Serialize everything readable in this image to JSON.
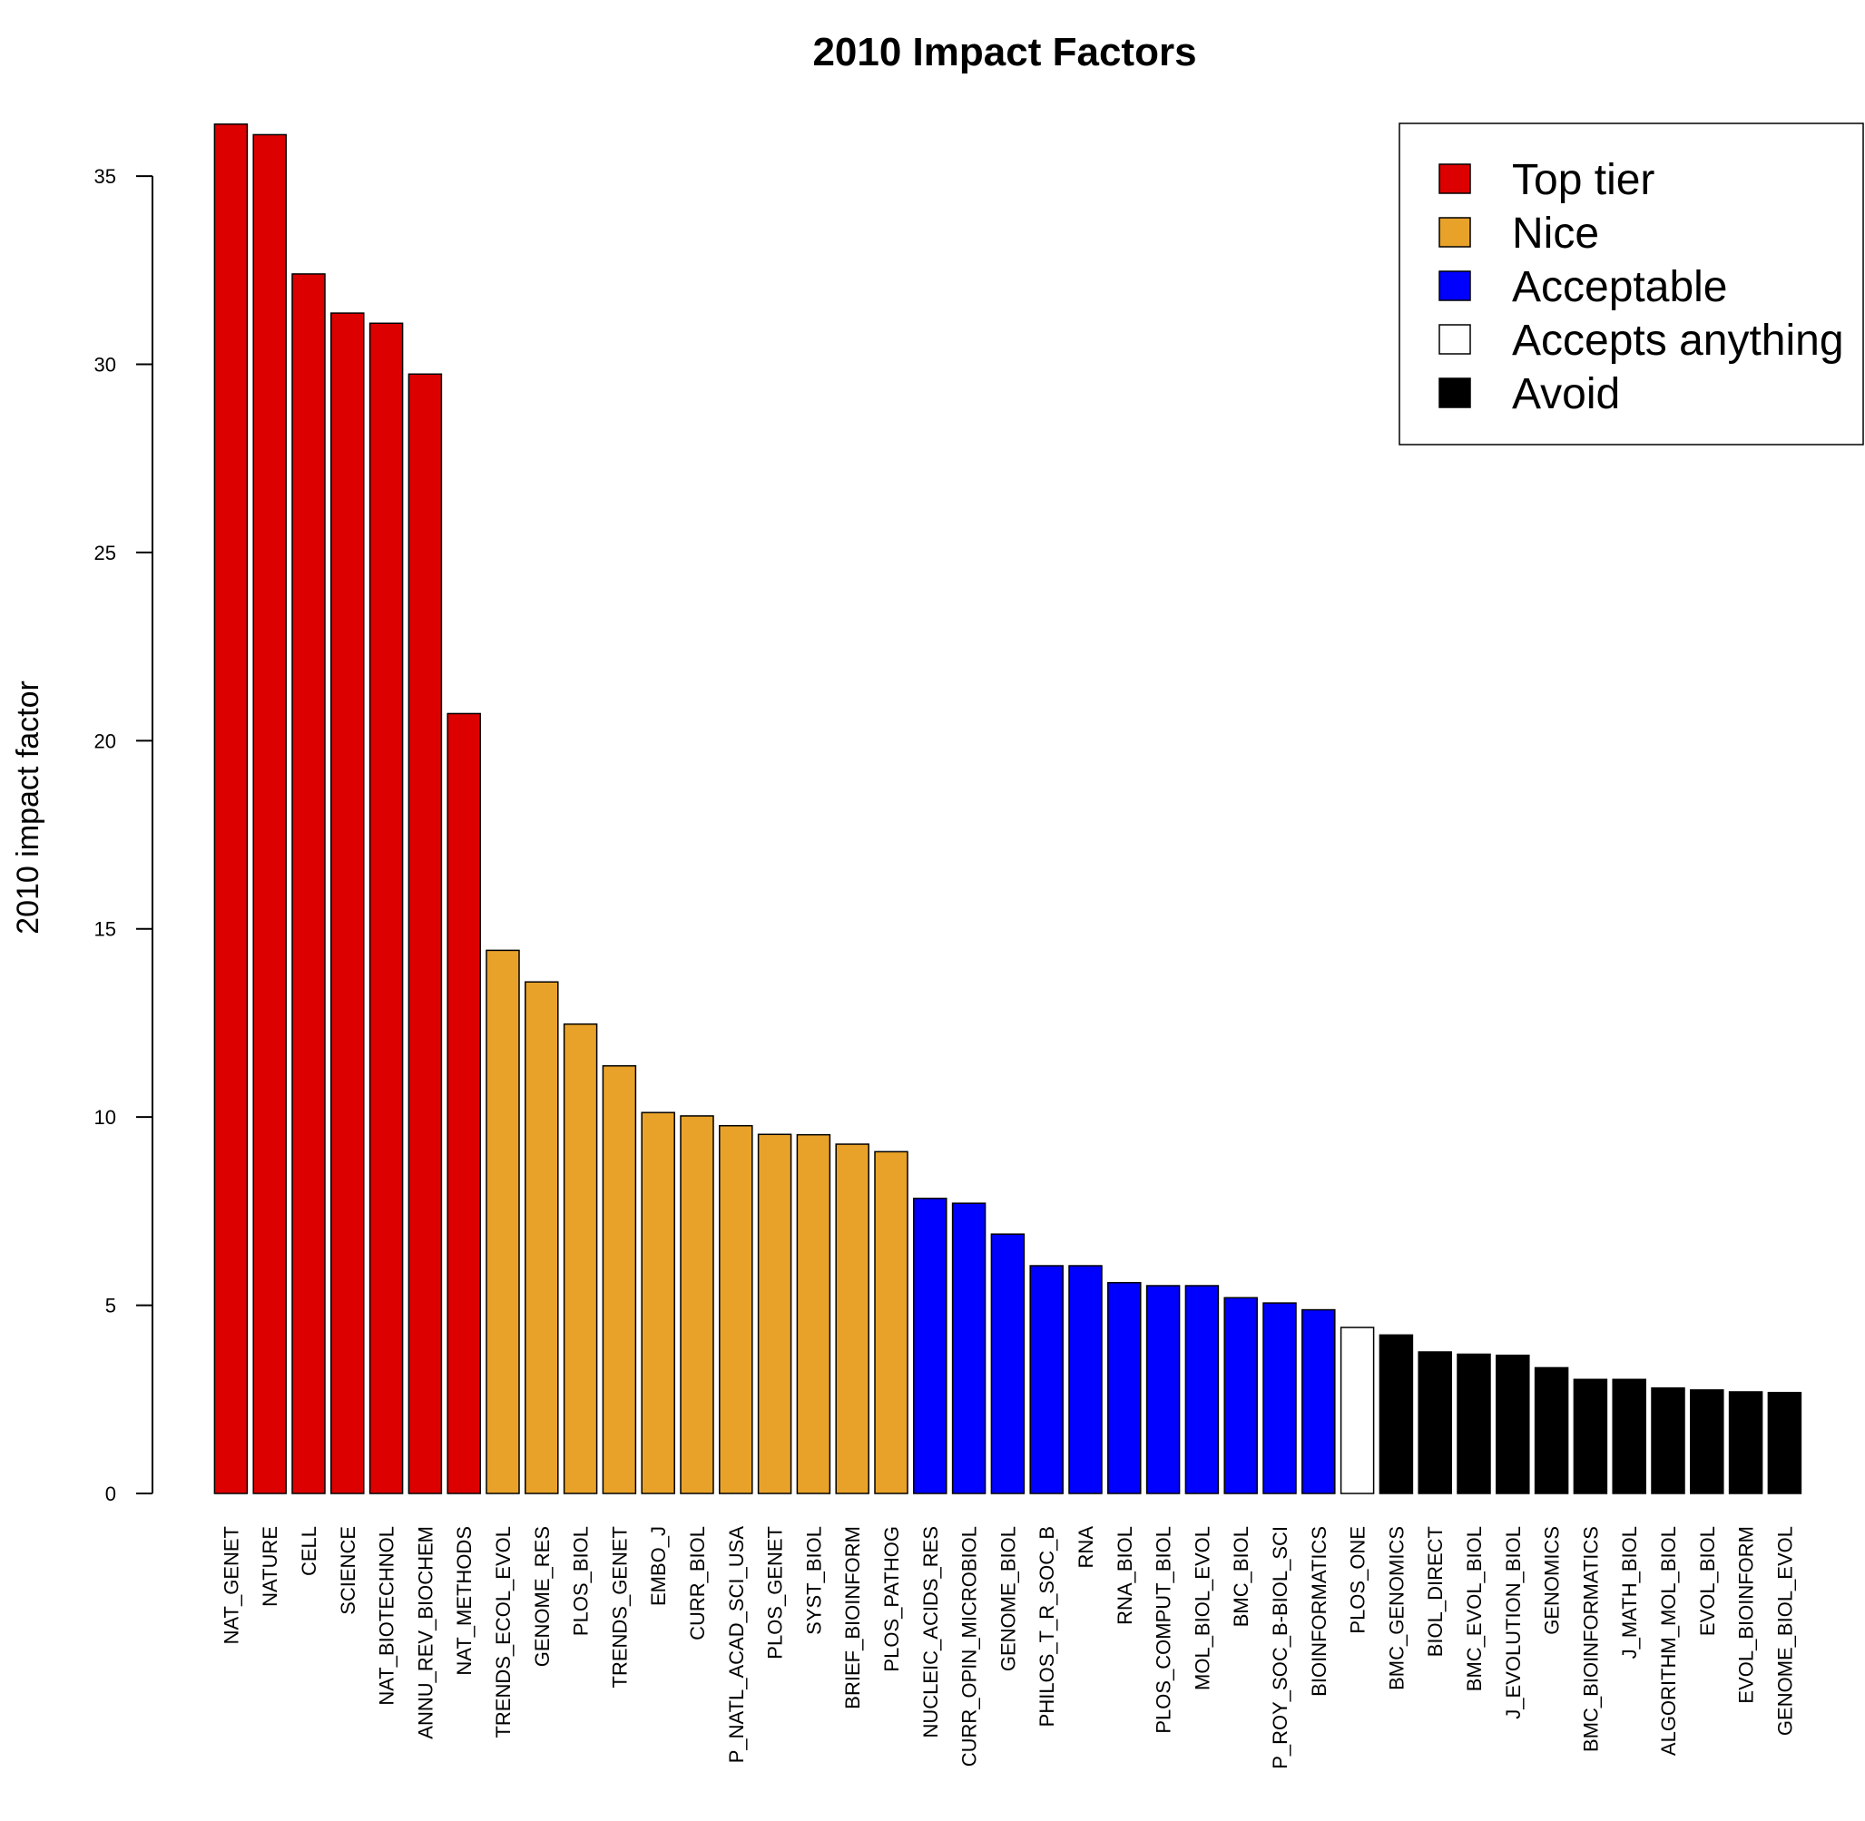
{
  "chart_data": {
    "type": "bar",
    "title": "2010 Impact Factors",
    "xlabel": "",
    "ylabel": "2010 impact factor",
    "ylim": [
      0,
      36.4
    ],
    "yticks": [
      0,
      5,
      10,
      15,
      20,
      25,
      30,
      35
    ],
    "grid": false,
    "legend_position": "top-right",
    "legend": [
      {
        "label": "Top tier",
        "color": "#dd0000"
      },
      {
        "label": "Nice",
        "color": "#e8a22a"
      },
      {
        "label": "Acceptable",
        "color": "#0000ff"
      },
      {
        "label": "Accepts anything",
        "color": "#ffffff"
      },
      {
        "label": "Avoid",
        "color": "#000000"
      }
    ],
    "categories": [
      "NAT_GENET",
      "NATURE",
      "CELL",
      "SCIENCE",
      "NAT_BIOTECHNOL",
      "ANNU_REV_BIOCHEM",
      "NAT_METHODS",
      "TRENDS_ECOL_EVOL",
      "GENOME_RES",
      "PLOS_BIOL",
      "TRENDS_GENET",
      "EMBO_J",
      "CURR_BIOL",
      "P_NATL_ACAD_SCI_USA",
      "PLOS_GENET",
      "SYST_BIOL",
      "BRIEF_BIOINFORM",
      "PLOS_PATHOG",
      "NUCLEIC_ACIDS_RES",
      "CURR_OPIN_MICROBIOL",
      "GENOME_BIOL",
      "PHILOS_T_R_SOC_B",
      "RNA",
      "RNA_BIOL",
      "PLOS_COMPUT_BIOL",
      "MOL_BIOL_EVOL",
      "BMC_BIOL",
      "P_ROY_SOC_B-BIOL_SCI",
      "BIOINFORMATICS",
      "PLOS_ONE",
      "BMC_GENOMICS",
      "BIOL_DIRECT",
      "BMC_EVOL_BIOL",
      "J_EVOLUTION_BIOL",
      "GENOMICS",
      "BMC_BIOINFORMATICS",
      "J_MATH_BIOL",
      "ALGORITHM_MOL_BIOL",
      "EVOL_BIOL",
      "EVOL_BIOINFORM",
      "GENOME_BIOL_EVOL"
    ],
    "values": [
      36.38,
      36.1,
      32.4,
      31.36,
      31.09,
      29.74,
      20.72,
      14.43,
      13.59,
      12.47,
      11.36,
      10.12,
      10.03,
      9.77,
      9.54,
      9.53,
      9.28,
      9.08,
      7.84,
      7.71,
      6.89,
      6.05,
      6.05,
      5.6,
      5.52,
      5.52,
      5.2,
      5.06,
      4.88,
      4.41,
      4.21,
      3.76,
      3.7,
      3.67,
      3.34,
      3.03,
      3.03,
      2.8,
      2.75,
      2.7,
      2.68
    ],
    "tiers": [
      "Top tier",
      "Top tier",
      "Top tier",
      "Top tier",
      "Top tier",
      "Top tier",
      "Top tier",
      "Nice",
      "Nice",
      "Nice",
      "Nice",
      "Nice",
      "Nice",
      "Nice",
      "Nice",
      "Nice",
      "Nice",
      "Nice",
      "Acceptable",
      "Acceptable",
      "Acceptable",
      "Acceptable",
      "Acceptable",
      "Acceptable",
      "Acceptable",
      "Acceptable",
      "Acceptable",
      "Acceptable",
      "Acceptable",
      "Accepts anything",
      "Avoid",
      "Avoid",
      "Avoid",
      "Avoid",
      "Avoid",
      "Avoid",
      "Avoid",
      "Avoid",
      "Avoid",
      "Avoid",
      "Avoid"
    ]
  }
}
